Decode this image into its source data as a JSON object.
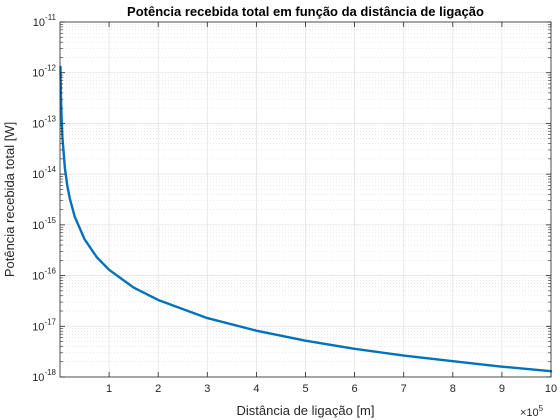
{
  "chart_data": {
    "type": "line",
    "title": "Potência recebida total em função da distância de ligação",
    "xlabel": "Distância de ligação [m]",
    "ylabel": "Potência recebida total [W]",
    "x_scale_exponent_label": "×10",
    "x_scale_exponent": "5",
    "x_scale_factor": 100000,
    "xlim": [
      0,
      1000000
    ],
    "ylim": [
      1e-18,
      1e-11
    ],
    "yscale": "log",
    "grid": true,
    "minor_grid": true,
    "x_ticks": [
      {
        "value": 100000,
        "label": "1"
      },
      {
        "value": 200000,
        "label": "2"
      },
      {
        "value": 300000,
        "label": "3"
      },
      {
        "value": 400000,
        "label": "4"
      },
      {
        "value": 500000,
        "label": "5"
      },
      {
        "value": 600000,
        "label": "6"
      },
      {
        "value": 700000,
        "label": "7"
      },
      {
        "value": 800000,
        "label": "8"
      },
      {
        "value": 900000,
        "label": "9"
      },
      {
        "value": 1000000,
        "label": "10"
      }
    ],
    "y_ticks": [
      {
        "value": 1e-18,
        "base": "10",
        "exp": "-18"
      },
      {
        "value": 1e-17,
        "base": "10",
        "exp": "-17"
      },
      {
        "value": 1e-16,
        "base": "10",
        "exp": "-16"
      },
      {
        "value": 1e-15,
        "base": "10",
        "exp": "-15"
      },
      {
        "value": 1e-14,
        "base": "10",
        "exp": "-14"
      },
      {
        "value": 1e-13,
        "base": "10",
        "exp": "-13"
      },
      {
        "value": 1e-12,
        "base": "10",
        "exp": "-12"
      },
      {
        "value": 1e-11,
        "base": "10",
        "exp": "-11"
      }
    ],
    "series": [
      {
        "color": "#0072bd",
        "x": [
          1000,
          1500,
          2000,
          3000,
          5000,
          10000,
          15000,
          20000,
          30000,
          50000,
          75000,
          100000,
          150000,
          200000,
          300000,
          400000,
          500000,
          600000,
          700000,
          800000,
          900000,
          1000000
        ],
        "y": [
          1.3e-12,
          5.8e-13,
          3.3e-13,
          1.45e-13,
          5.2e-14,
          1.3e-14,
          5.8e-15,
          3.3e-15,
          1.45e-15,
          5.2e-16,
          2.3e-16,
          1.3e-16,
          5.8e-17,
          3.3e-17,
          1.45e-17,
          8.2e-18,
          5.2e-18,
          3.6e-18,
          2.65e-18,
          2.05e-18,
          1.6e-18,
          1.3e-18
        ]
      }
    ]
  }
}
